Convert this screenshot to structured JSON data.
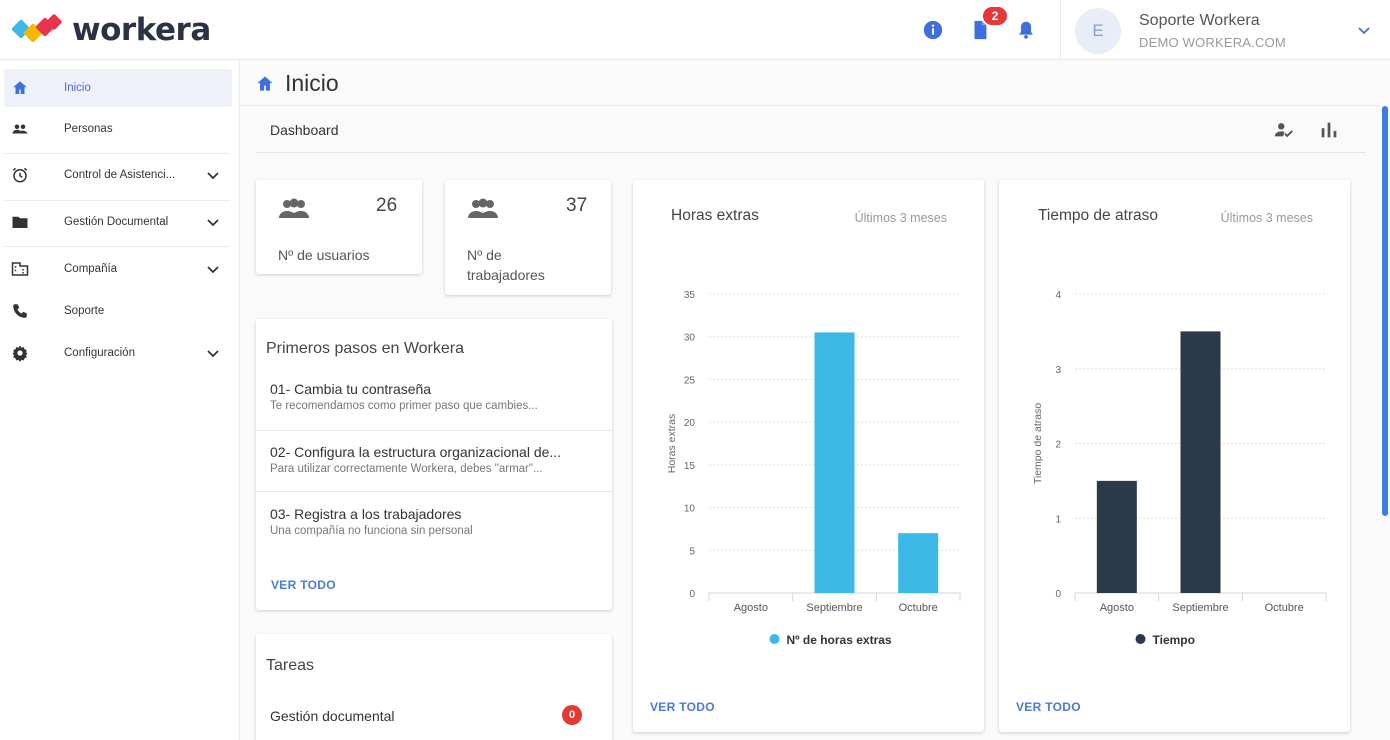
{
  "brand": {
    "name": "workera"
  },
  "header": {
    "notification_badge": "2",
    "user": {
      "initial": "E",
      "name": "Soporte Workera",
      "org": "DEMO WORKERA.COM"
    }
  },
  "sidebar": {
    "items": [
      {
        "label": "Inicio",
        "icon": "home-icon",
        "active": true
      },
      {
        "label": "Personas",
        "icon": "people-icon"
      },
      {
        "label": "Control de Asistenci...",
        "icon": "alarm-icon",
        "expandable": true
      },
      {
        "label": "Gestión Documental",
        "icon": "folder-icon",
        "expandable": true
      },
      {
        "label": "Compañía",
        "icon": "building-icon",
        "expandable": true
      },
      {
        "label": "Soporte",
        "icon": "phone-icon"
      },
      {
        "label": "Configuración",
        "icon": "gear-icon",
        "expandable": true
      }
    ]
  },
  "page": {
    "title": "Inicio",
    "section": "Dashboard"
  },
  "stats": [
    {
      "value": "26",
      "label": "Nº de usuarios"
    },
    {
      "value": "37",
      "label": "Nº de trabajadores"
    }
  ],
  "first_steps": {
    "title": "Primeros pasos en Workera",
    "steps": [
      {
        "title": "01- Cambia tu contraseña",
        "subtitle": "Te recomendamos como primer paso que cambies..."
      },
      {
        "title": "02- Configura la estructura organizacional de...",
        "subtitle": "Para utilizar correctamente Workera, debes \"armar\"..."
      },
      {
        "title": "03- Registra a los trabajadores",
        "subtitle": "Una compañía no funciona sin personal"
      }
    ],
    "link": "VER TODO"
  },
  "tasks": {
    "title": "Tareas",
    "items": [
      {
        "label": "Gestión documental",
        "count": "0"
      }
    ]
  },
  "chart_cards": [
    {
      "title": "Horas extras",
      "period": "Últimos 3 meses",
      "link": "VER TODO"
    },
    {
      "title": "Tiempo de atraso",
      "period": "Últimos 3 meses",
      "link": "VER TODO"
    }
  ],
  "chart_data": [
    {
      "type": "bar",
      "title": "Horas extras",
      "categories": [
        "Agosto",
        "Septiembre",
        "Octubre"
      ],
      "series": [
        {
          "name": "Nº de horas extras",
          "values": [
            0,
            30.5,
            7
          ]
        }
      ],
      "ylabel": "Horas extras",
      "ylim": [
        0,
        35
      ],
      "yticks": [
        0,
        5,
        10,
        15,
        20,
        25,
        30,
        35
      ],
      "grid": true,
      "legend": "bottom",
      "color": "#3bb8e6"
    },
    {
      "type": "bar",
      "title": "Tiempo de atraso",
      "categories": [
        "Agosto",
        "Septiembre",
        "Octubre"
      ],
      "series": [
        {
          "name": "Tiempo",
          "values": [
            1.5,
            3.5,
            0
          ]
        }
      ],
      "ylabel": "Tiempo de atraso",
      "ylim": [
        0,
        4
      ],
      "yticks": [
        0,
        1,
        2,
        3,
        4
      ],
      "grid": true,
      "legend": "bottom",
      "color": "#2b3a4a"
    }
  ],
  "colors": {
    "accent": "#4a7bd8",
    "badge": "#e53935",
    "brand_dark": "#2b3245"
  }
}
